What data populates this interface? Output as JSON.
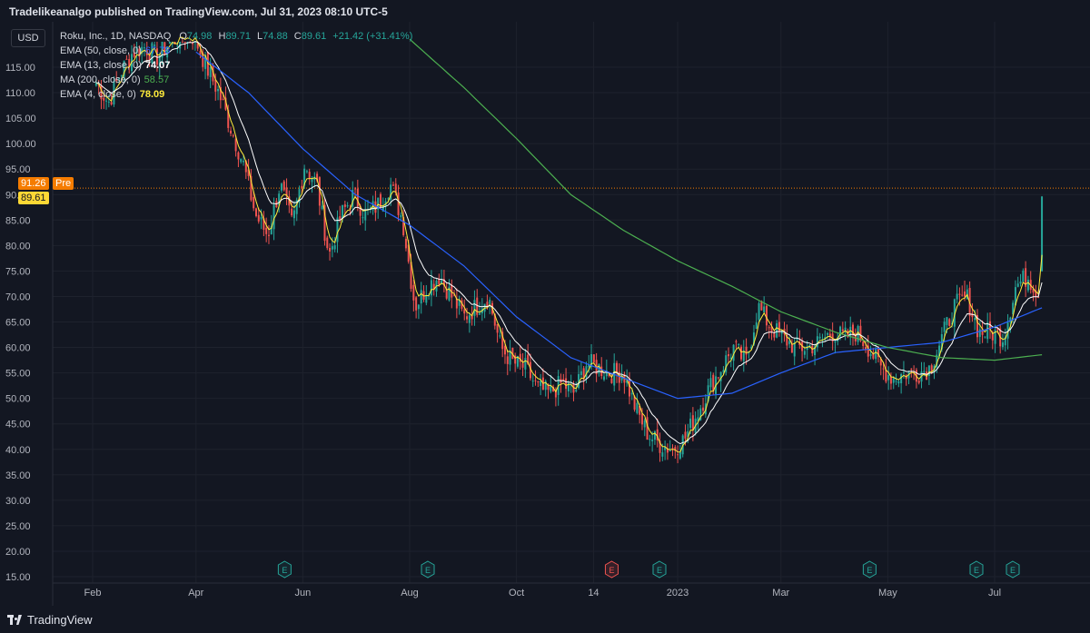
{
  "header": {
    "published_text": "Tradelikeanalgo published on TradingView.com, Jul 31, 2023 08:10 UTC-5"
  },
  "currency_button": "USD",
  "legend": {
    "symbol": "Roku, Inc., 1D, NASDAQ",
    "ohlc": {
      "o_label": "O",
      "o": "74.98",
      "h_label": "H",
      "h": "89.71",
      "l_label": "L",
      "l": "74.88",
      "c_label": "C",
      "c": "89.61",
      "change": "+21.42 (+31.41%)"
    },
    "indicators": [
      {
        "name": "EMA (50, close, 0)",
        "value": "67.78",
        "color": "#2962ff"
      },
      {
        "name": "EMA (13, close, 0)",
        "value": "74.07",
        "color": "#ffffff"
      },
      {
        "name": "MA (200, close, 0)",
        "value": "58.57",
        "color": "#4caf50"
      },
      {
        "name": "EMA (4, close, 0)",
        "value": "78.09",
        "color": "#ffeb3b"
      }
    ]
  },
  "price_tags": {
    "pre_price": "91.26",
    "pre_label": "Pre",
    "last_price": "89.61"
  },
  "colors": {
    "background": "#131722",
    "grid": "#1e222d",
    "text": "#b2b5be",
    "up": "#26a69a",
    "down": "#ef5350",
    "ema50": "#2962ff",
    "ema13": "#ffffff",
    "ma200": "#4caf50",
    "ema4": "#ffeb3b",
    "pre_tag": "#f57c00",
    "last_tag": "#fdd835"
  },
  "earnings_markers": [
    {
      "label": "E",
      "date_index": 2,
      "type": "positive"
    },
    {
      "label": "E",
      "date_index": 3,
      "type": "positive"
    },
    {
      "label": "E",
      "date_index": 5,
      "type": "negative"
    },
    {
      "label": "E",
      "date_index": 6,
      "type": "positive"
    },
    {
      "label": "E",
      "date_index": 8,
      "type": "positive"
    },
    {
      "label": "E",
      "date_index": 9,
      "type": "positive"
    },
    {
      "label": "E",
      "date_index": 10,
      "type": "positive"
    }
  ],
  "branding": {
    "logo_text": "TradingView"
  },
  "chart_data": {
    "type": "candlestick",
    "y_ticks": [
      115,
      110,
      105,
      100,
      95,
      90,
      85,
      80,
      75,
      70,
      65,
      60,
      55,
      50,
      45,
      40,
      35,
      30,
      25,
      20,
      15
    ],
    "y_tick_labels": [
      "115.00",
      "110.00",
      "105.00",
      "100.00",
      "95.00",
      "90.00",
      "85.00",
      "80.00",
      "75.00",
      "70.00",
      "65.00",
      "60.00",
      "55.00",
      "50.00",
      "45.00",
      "40.00",
      "35.00",
      "30.00",
      "25.00",
      "20.00",
      "15.00"
    ],
    "ylim": [
      13.5,
      120.5
    ],
    "x_ticks": [
      "Feb",
      "Apr",
      "Jun",
      "Aug",
      "Oct",
      "14",
      "2023",
      "Mar",
      "May",
      "Jul"
    ],
    "x_range": [
      "2022-01-01",
      "2023-08-05"
    ],
    "x_tick_dates": [
      "2022-02-01",
      "2022-04-01",
      "2022-06-01",
      "2022-08-01",
      "2022-10-01",
      "2022-11-14",
      "2023-01-01",
      "2023-03-01",
      "2023-05-01",
      "2023-07-01"
    ],
    "grid": true,
    "close_path": [
      [
        "2022-02-03",
        112
      ],
      [
        "2022-02-10",
        108
      ],
      [
        "2022-02-17",
        114
      ],
      [
        "2022-02-24",
        118
      ],
      [
        "2022-03-03",
        119
      ],
      [
        "2022-03-10",
        117
      ],
      [
        "2022-03-17",
        120
      ],
      [
        "2022-03-24",
        121
      ],
      [
        "2022-03-31",
        121
      ],
      [
        "2022-04-07",
        115
      ],
      [
        "2022-04-14",
        110
      ],
      [
        "2022-04-21",
        103
      ],
      [
        "2022-04-28",
        96
      ],
      [
        "2022-05-05",
        86
      ],
      [
        "2022-05-12",
        82
      ],
      [
        "2022-05-19",
        92
      ],
      [
        "2022-05-26",
        84
      ],
      [
        "2022-06-02",
        96
      ],
      [
        "2022-06-09",
        92
      ],
      [
        "2022-06-16",
        78
      ],
      [
        "2022-06-23",
        86
      ],
      [
        "2022-06-30",
        90
      ],
      [
        "2022-07-07",
        86
      ],
      [
        "2022-07-14",
        88
      ],
      [
        "2022-07-21",
        92
      ],
      [
        "2022-07-28",
        85
      ],
      [
        "2022-08-04",
        68
      ],
      [
        "2022-08-11",
        72
      ],
      [
        "2022-08-18",
        74
      ],
      [
        "2022-08-25",
        70
      ],
      [
        "2022-09-01",
        66
      ],
      [
        "2022-09-08",
        68
      ],
      [
        "2022-09-15",
        70
      ],
      [
        "2022-09-22",
        60
      ],
      [
        "2022-09-29",
        57
      ],
      [
        "2022-10-06",
        56
      ],
      [
        "2022-10-13",
        52
      ],
      [
        "2022-10-20",
        51
      ],
      [
        "2022-10-27",
        53
      ],
      [
        "2022-11-03",
        51
      ],
      [
        "2022-11-10",
        57
      ],
      [
        "2022-11-17",
        56
      ],
      [
        "2022-11-24",
        55
      ],
      [
        "2022-12-01",
        55
      ],
      [
        "2022-12-08",
        48
      ],
      [
        "2022-12-15",
        43
      ],
      [
        "2022-12-22",
        41
      ],
      [
        "2022-12-29",
        40
      ],
      [
        "2023-01-05",
        42
      ],
      [
        "2023-01-12",
        47
      ],
      [
        "2023-01-19",
        52
      ],
      [
        "2023-01-26",
        56
      ],
      [
        "2023-02-02",
        60
      ],
      [
        "2023-02-09",
        57
      ],
      [
        "2023-02-16",
        68
      ],
      [
        "2023-02-23",
        64
      ],
      [
        "2023-03-02",
        62
      ],
      [
        "2023-03-09",
        60
      ],
      [
        "2023-03-16",
        60
      ],
      [
        "2023-03-23",
        61
      ],
      [
        "2023-03-30",
        63
      ],
      [
        "2023-04-06",
        62
      ],
      [
        "2023-04-13",
        63
      ],
      [
        "2023-04-20",
        60
      ],
      [
        "2023-04-27",
        56
      ],
      [
        "2023-05-04",
        54
      ],
      [
        "2023-05-11",
        55
      ],
      [
        "2023-05-18",
        55
      ],
      [
        "2023-05-25",
        56
      ],
      [
        "2023-06-01",
        62
      ],
      [
        "2023-06-08",
        68
      ],
      [
        "2023-06-15",
        70
      ],
      [
        "2023-06-22",
        63
      ],
      [
        "2023-06-29",
        63
      ],
      [
        "2023-07-06",
        62
      ],
      [
        "2023-07-13",
        72
      ],
      [
        "2023-07-20",
        74
      ],
      [
        "2023-07-27",
        70
      ],
      [
        "2023-07-28",
        89.61
      ]
    ],
    "series": [
      {
        "name": "EMA (50, close, 0)",
        "color": "#2962ff",
        "points": [
          [
            "2022-04-01",
            118
          ],
          [
            "2022-05-01",
            110
          ],
          [
            "2022-06-01",
            99
          ],
          [
            "2022-07-01",
            90
          ],
          [
            "2022-08-01",
            84
          ],
          [
            "2022-09-01",
            76
          ],
          [
            "2022-10-01",
            66
          ],
          [
            "2022-11-01",
            58
          ],
          [
            "2022-12-01",
            54
          ],
          [
            "2023-01-01",
            50
          ],
          [
            "2023-02-01",
            51
          ],
          [
            "2023-03-01",
            55
          ],
          [
            "2023-04-01",
            59
          ],
          [
            "2023-05-01",
            60
          ],
          [
            "2023-06-01",
            61
          ],
          [
            "2023-07-01",
            64
          ],
          [
            "2023-07-28",
            67.78
          ]
        ]
      },
      {
        "name": "MA (200, close, 0)",
        "color": "#4caf50",
        "points": [
          [
            "2022-08-01",
            120.5
          ],
          [
            "2022-09-01",
            111
          ],
          [
            "2022-10-01",
            101
          ],
          [
            "2022-11-01",
            90
          ],
          [
            "2022-12-01",
            83
          ],
          [
            "2023-01-01",
            77
          ],
          [
            "2023-02-01",
            72
          ],
          [
            "2023-03-01",
            67
          ],
          [
            "2023-04-01",
            63
          ],
          [
            "2023-05-01",
            60
          ],
          [
            "2023-06-01",
            58
          ],
          [
            "2023-07-01",
            57.5
          ],
          [
            "2023-07-28",
            58.57
          ]
        ]
      }
    ]
  }
}
